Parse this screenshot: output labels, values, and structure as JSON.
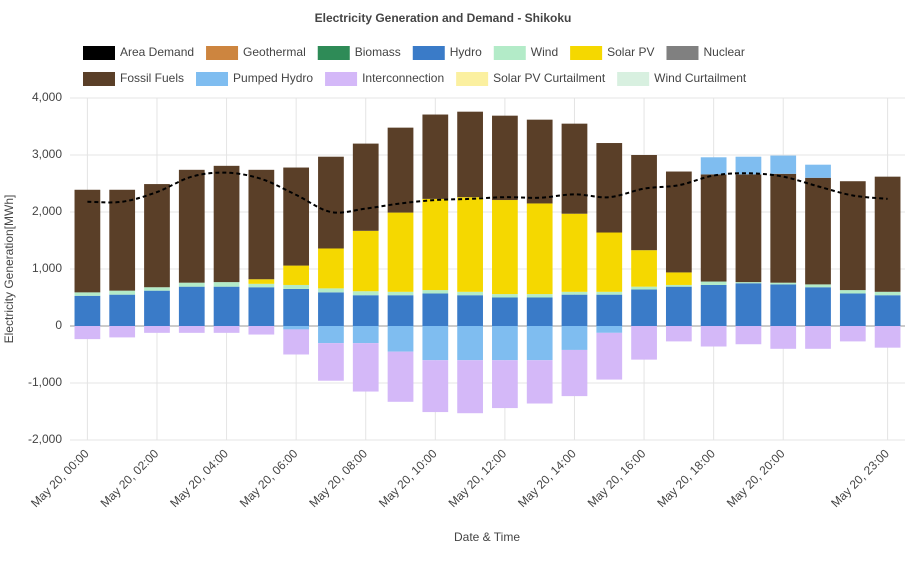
{
  "chart_data": {
    "type": "bar",
    "stacked": true,
    "title": "Electricity Generation and Demand - Shikoku",
    "xlabel": "Date & Time",
    "ylabel": "Electricity Generation[MWh]",
    "categories": [
      "May 20, 00:00",
      null,
      "May 20, 02:00",
      null,
      "May 20, 04:00",
      null,
      "May 20, 06:00",
      null,
      "May 20, 08:00",
      null,
      "May 20, 10:00",
      null,
      "May 20, 12:00",
      null,
      "May 20, 14:00",
      null,
      "May 20, 16:00",
      null,
      "May 20, 18:00",
      null,
      "May 20, 20:00",
      null,
      null,
      "May 20, 23:00"
    ],
    "ylim": [
      -2000,
      4000
    ],
    "yticks": [
      {
        "value": -2000,
        "label": "-2,000"
      },
      {
        "value": -1000,
        "label": "-1,000"
      },
      0,
      {
        "value": 1000,
        "label": "1,000"
      },
      {
        "value": 2000,
        "label": "2,000"
      },
      {
        "value": 3000,
        "label": "3,000"
      },
      {
        "value": 4000,
        "label": "4,000"
      }
    ],
    "grid": true,
    "series": [
      {
        "name": "Area Demand",
        "type": "line",
        "color": "#000000",
        "values": [
          2180,
          2180,
          2350,
          2620,
          2690,
          2580,
          2300,
          2000,
          2060,
          2150,
          2210,
          2230,
          2260,
          2250,
          2310,
          2260,
          2410,
          2470,
          2640,
          2680,
          2620,
          2450,
          2290,
          2230
        ]
      },
      {
        "name": "Geothermal",
        "color": "#cd853f",
        "values": [
          0,
          0,
          0,
          0,
          0,
          0,
          0,
          0,
          0,
          0,
          0,
          0,
          0,
          0,
          0,
          0,
          0,
          0,
          0,
          0,
          0,
          0,
          0,
          0
        ]
      },
      {
        "name": "Biomass",
        "color": "#2e8b57",
        "values": [
          0,
          0,
          0,
          0,
          0,
          0,
          0,
          0,
          0,
          0,
          0,
          0,
          0,
          0,
          0,
          0,
          0,
          0,
          0,
          0,
          0,
          0,
          0,
          0
        ]
      },
      {
        "name": "Hydro",
        "color": "#3a7bc8",
        "values": [
          530,
          550,
          620,
          690,
          690,
          680,
          650,
          590,
          540,
          540,
          570,
          540,
          500,
          500,
          550,
          550,
          640,
          690,
          720,
          750,
          730,
          680,
          570,
          540
        ]
      },
      {
        "name": "Wind",
        "color": "#b3ebc8",
        "values": [
          60,
          70,
          60,
          70,
          80,
          60,
          70,
          70,
          70,
          60,
          60,
          60,
          60,
          60,
          50,
          50,
          50,
          30,
          60,
          20,
          30,
          50,
          60,
          60
        ]
      },
      {
        "name": "Solar PV",
        "color": "#f5d800",
        "values": [
          0,
          0,
          0,
          0,
          0,
          80,
          340,
          700,
          1060,
          1390,
          1600,
          1660,
          1650,
          1590,
          1370,
          1040,
          640,
          220,
          0,
          0,
          0,
          0,
          0,
          0
        ]
      },
      {
        "name": "Nuclear",
        "color": "#808080",
        "values": [
          0,
          0,
          0,
          0,
          0,
          0,
          0,
          0,
          0,
          0,
          0,
          0,
          0,
          0,
          0,
          0,
          0,
          0,
          0,
          0,
          0,
          0,
          0,
          0
        ]
      },
      {
        "name": "Fossil Fuels",
        "color": "#5a3f28",
        "values": [
          1800,
          1770,
          1810,
          1980,
          2040,
          1920,
          1720,
          1610,
          1530,
          1490,
          1480,
          1500,
          1480,
          1470,
          1580,
          1570,
          1670,
          1770,
          1880,
          1890,
          1910,
          1870,
          1910,
          2020
        ]
      },
      {
        "name": "Pumped Hydro",
        "color": "#7fbdf0",
        "values": [
          0,
          0,
          0,
          0,
          0,
          0,
          -60,
          -300,
          -300,
          -450,
          -600,
          -600,
          -600,
          -600,
          -420,
          -120,
          0,
          0,
          300,
          310,
          320,
          230,
          0,
          0
        ]
      },
      {
        "name": "Interconnection",
        "color": "#d4b8f8",
        "values": [
          -230,
          -200,
          -120,
          -120,
          -120,
          -150,
          -440,
          -660,
          -850,
          -880,
          -910,
          -930,
          -840,
          -760,
          -810,
          -820,
          -590,
          -270,
          -360,
          -320,
          -400,
          -400,
          -270,
          -380
        ]
      },
      {
        "name": "Solar PV Curtailment",
        "color": "#fbf0a0",
        "values": [
          0,
          0,
          0,
          0,
          0,
          0,
          0,
          0,
          0,
          0,
          0,
          0,
          0,
          0,
          0,
          0,
          0,
          0,
          0,
          0,
          0,
          0,
          0,
          0
        ]
      },
      {
        "name": "Wind Curtailment",
        "color": "#d8f0e0",
        "values": [
          0,
          0,
          0,
          0,
          0,
          0,
          0,
          0,
          0,
          0,
          0,
          0,
          0,
          0,
          0,
          0,
          0,
          0,
          0,
          0,
          0,
          0,
          0,
          0
        ]
      }
    ]
  }
}
